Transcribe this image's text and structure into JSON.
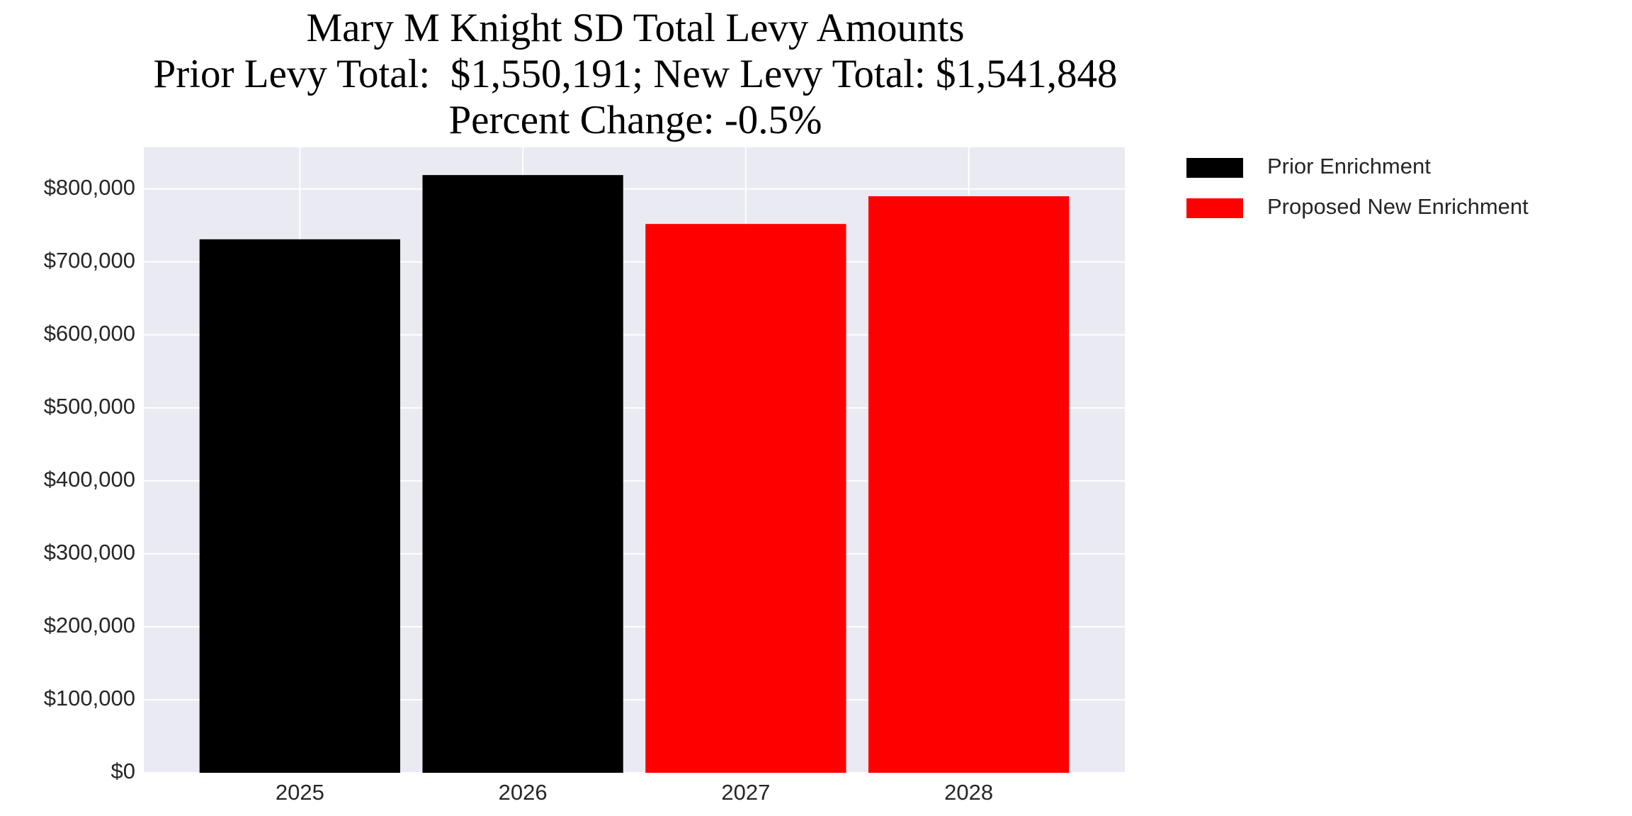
{
  "chart_data": {
    "type": "bar",
    "title": "Mary M Knight SD Total Levy Amounts",
    "subtitle": [
      "Prior Levy Total:  $1,550,191; New Levy Total: $1,541,848",
      "Percent Change: -0.5%"
    ],
    "categories": [
      "2025",
      "2026",
      "2027",
      "2028"
    ],
    "series": [
      {
        "name": "Prior Enrichment",
        "color": "#000000",
        "values": [
          731000,
          819000,
          null,
          null
        ]
      },
      {
        "name": "Proposed New Enrichment",
        "color": "#ff0000",
        "values": [
          null,
          null,
          752000,
          790000
        ]
      }
    ],
    "ylim": [
      0,
      857000
    ],
    "yticks": [
      {
        "value": 0,
        "label": "$0"
      },
      {
        "value": 100000,
        "label": "$100,000"
      },
      {
        "value": 200000,
        "label": "$200,000"
      },
      {
        "value": 300000,
        "label": "$300,000"
      },
      {
        "value": 400000,
        "label": "$400,000"
      },
      {
        "value": 500000,
        "label": "$500,000"
      },
      {
        "value": 600000,
        "label": "$600,000"
      },
      {
        "value": 700000,
        "label": "$700,000"
      },
      {
        "value": 800000,
        "label": "$800,000"
      }
    ],
    "grid": true,
    "legend": "outside-right"
  }
}
